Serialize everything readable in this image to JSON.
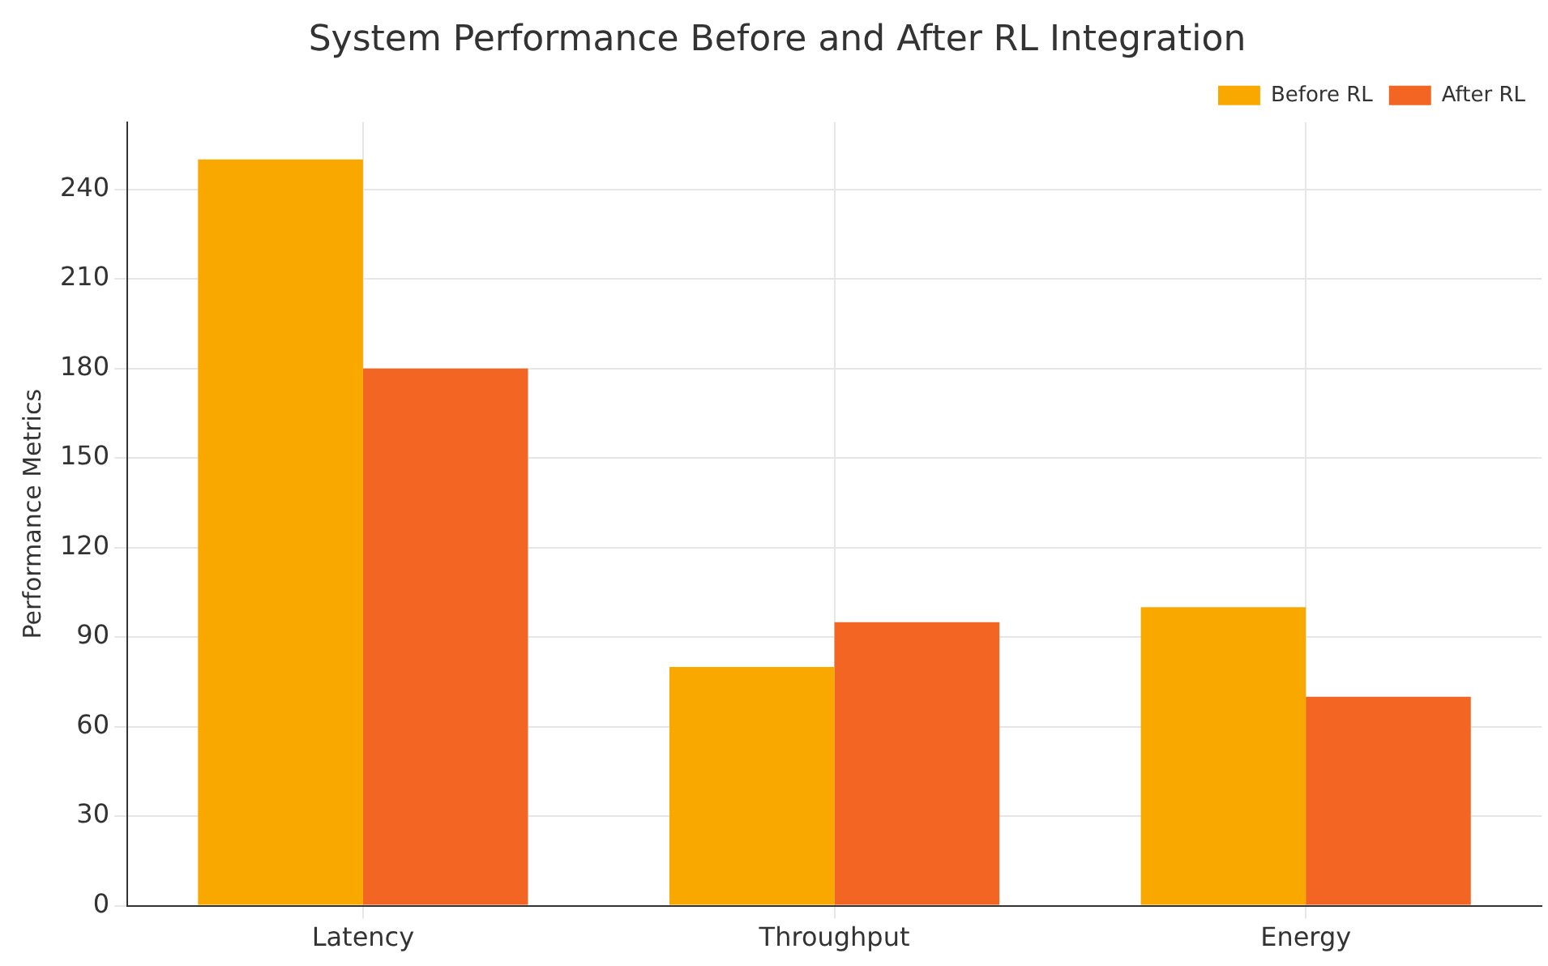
{
  "chart_data": {
    "type": "bar",
    "title": "System Performance Before and After RL Integration",
    "ylabel": "Performance Metrics",
    "categories": [
      "Latency",
      "Throughput",
      "Energy"
    ],
    "series": [
      {
        "name": "Before RL",
        "color": "#f9a800",
        "values": [
          250,
          80,
          100
        ]
      },
      {
        "name": "After RL",
        "color": "#f26522",
        "values": [
          180,
          95,
          70
        ]
      }
    ],
    "ylim": [
      0,
      262.5
    ],
    "yticks": [
      0,
      30,
      60,
      90,
      120,
      150,
      180,
      210,
      240
    ],
    "grid": true,
    "legend": "top right"
  }
}
